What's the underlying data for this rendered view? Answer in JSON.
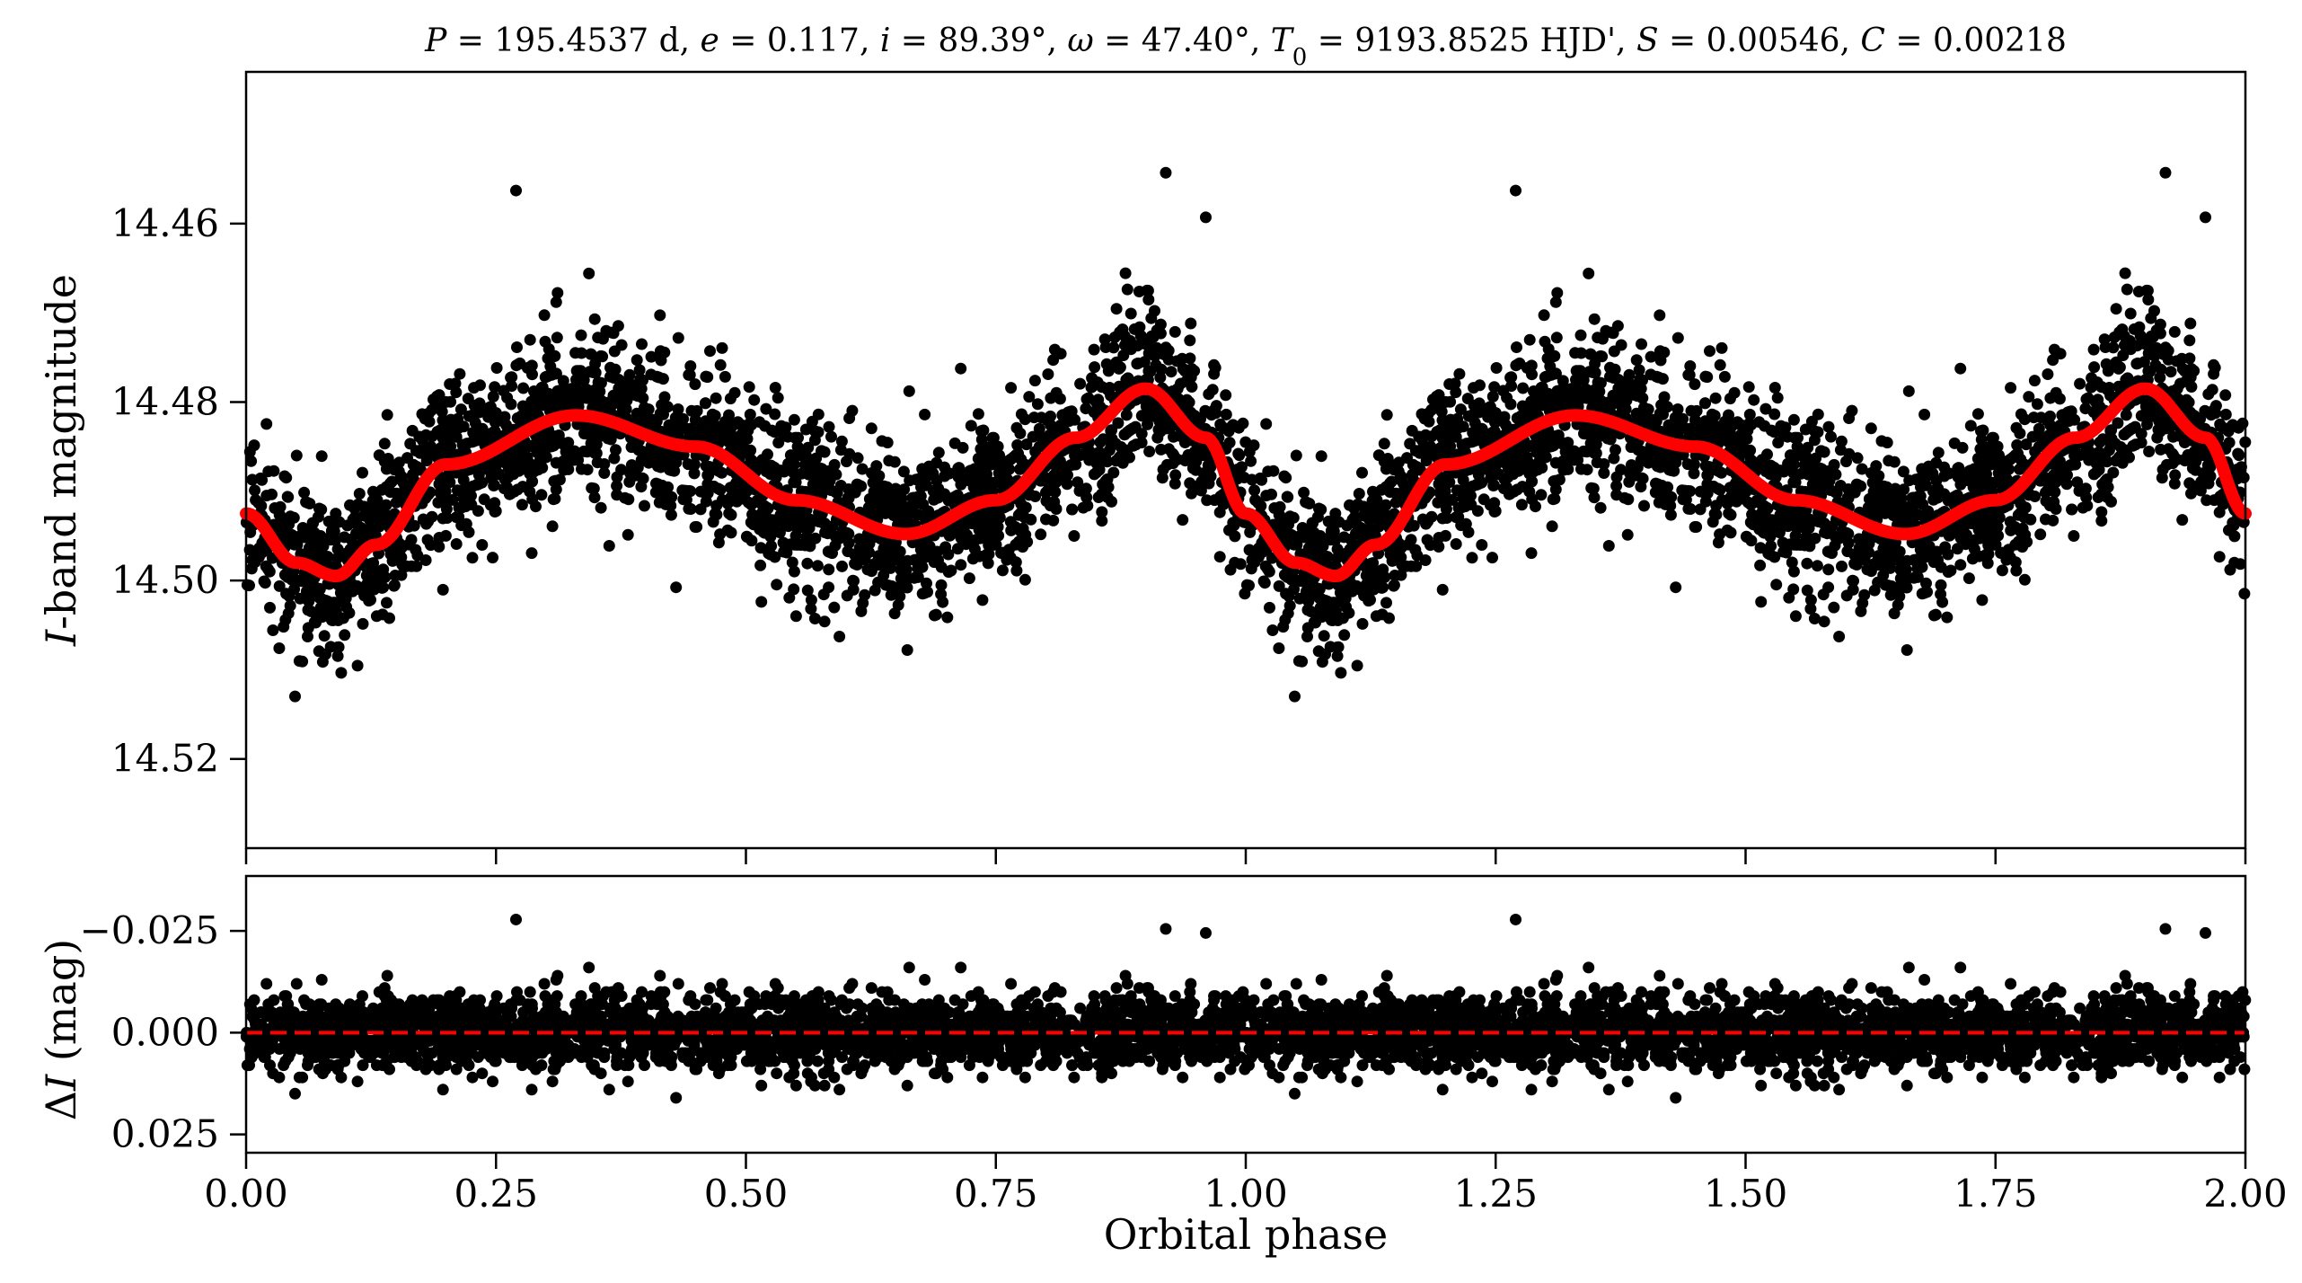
{
  "chart_data": [
    {
      "type": "scatter",
      "panel": "light-curve",
      "title_parts": [
        {
          "text": "P",
          "italic": true
        },
        {
          "text": " = 195.4537 d, "
        },
        {
          "text": "e",
          "italic": true
        },
        {
          "text": " = 0.117, "
        },
        {
          "text": "i",
          "italic": true
        },
        {
          "text": " = 89.39°, "
        },
        {
          "text": "ω",
          "italic": true
        },
        {
          "text": " = 47.40°, "
        },
        {
          "text": "T",
          "italic": true
        },
        {
          "text": "0",
          "sub": true
        },
        {
          "text": " = 9193.8525 HJD', "
        },
        {
          "text": "S",
          "italic": true
        },
        {
          "text": " = 0.00546, "
        },
        {
          "text": "C",
          "italic": true
        },
        {
          "text": " = 0.00218"
        }
      ],
      "ylabel_italic": "I",
      "ylabel_rest": "-band magnitude",
      "y_inverted": true,
      "xlim": [
        0.0,
        2.0
      ],
      "ylim": [
        14.53,
        14.443
      ],
      "yticks": [
        14.46,
        14.48,
        14.5,
        14.52
      ],
      "ytick_labels": [
        "14.46",
        "14.48",
        "14.50",
        "14.52"
      ],
      "xticks": [
        0.0,
        0.25,
        0.5,
        0.75,
        1.0,
        1.25,
        1.5,
        1.75,
        2.0
      ],
      "grid": false,
      "series": [
        {
          "kind": "points",
          "color": "#000000",
          "points_description_free": true,
          "model_params": {
            "mean": 14.4905,
            "noise_sd": 0.0045
          },
          "outliers": [
            [
              0.27,
              14.4563
            ],
            [
              0.92,
              14.4543
            ],
            [
              0.96,
              14.4593
            ],
            [
              1.27,
              14.4563
            ],
            [
              1.92,
              14.4543
            ],
            [
              1.96,
              14.4593
            ]
          ]
        },
        {
          "kind": "model",
          "color": "#ff0000",
          "curve": [
            [
              0.0,
              14.4925
            ],
            [
              0.05,
              14.498
            ],
            [
              0.09,
              14.4995
            ],
            [
              0.13,
              14.496
            ],
            [
              0.2,
              14.487
            ],
            [
              0.33,
              14.4815
            ],
            [
              0.45,
              14.485
            ],
            [
              0.55,
              14.491
            ],
            [
              0.66,
              14.4948
            ],
            [
              0.75,
              14.491
            ],
            [
              0.83,
              14.484
            ],
            [
              0.9,
              14.4785
            ],
            [
              0.96,
              14.484
            ],
            [
              1.0,
              14.4925
            ],
            [
              1.05,
              14.498
            ],
            [
              1.09,
              14.4995
            ],
            [
              1.13,
              14.496
            ],
            [
              1.2,
              14.487
            ],
            [
              1.33,
              14.4815
            ],
            [
              1.45,
              14.485
            ],
            [
              1.55,
              14.491
            ],
            [
              1.66,
              14.4948
            ],
            [
              1.75,
              14.491
            ],
            [
              1.83,
              14.484
            ],
            [
              1.9,
              14.4785
            ],
            [
              1.96,
              14.484
            ],
            [
              2.0,
              14.4925
            ]
          ]
        }
      ]
    },
    {
      "type": "scatter",
      "panel": "residuals",
      "ylabel_prefix": "Δ",
      "ylabel_italic": "I",
      "ylabel_rest": " (mag)",
      "xlabel": "Orbital phase",
      "y_inverted": true,
      "xlim": [
        0.0,
        2.0
      ],
      "ylim": [
        0.0295,
        -0.0385
      ],
      "yticks": [
        -0.025,
        0.0,
        0.025
      ],
      "ytick_labels": [
        "−0.025",
        "0.000",
        "0.025"
      ],
      "xticks": [
        0.0,
        0.25,
        0.5,
        0.75,
        1.0,
        1.25,
        1.5,
        1.75,
        2.0
      ],
      "xtick_labels": [
        "0.00",
        "0.25",
        "0.50",
        "0.75",
        "1.00",
        "1.25",
        "1.50",
        "1.75",
        "2.00"
      ],
      "zero_line": {
        "y": 0.0,
        "color": "#ff0000",
        "style": "dashed"
      },
      "series": [
        {
          "kind": "points",
          "color": "#000000",
          "noise_sd": 0.0045,
          "outliers": [
            [
              0.27,
              -0.0278
            ],
            [
              0.92,
              -0.0255
            ],
            [
              0.96,
              -0.0245
            ],
            [
              1.27,
              -0.0278
            ],
            [
              1.92,
              -0.0255
            ],
            [
              1.96,
              -0.0245
            ]
          ]
        }
      ]
    }
  ]
}
